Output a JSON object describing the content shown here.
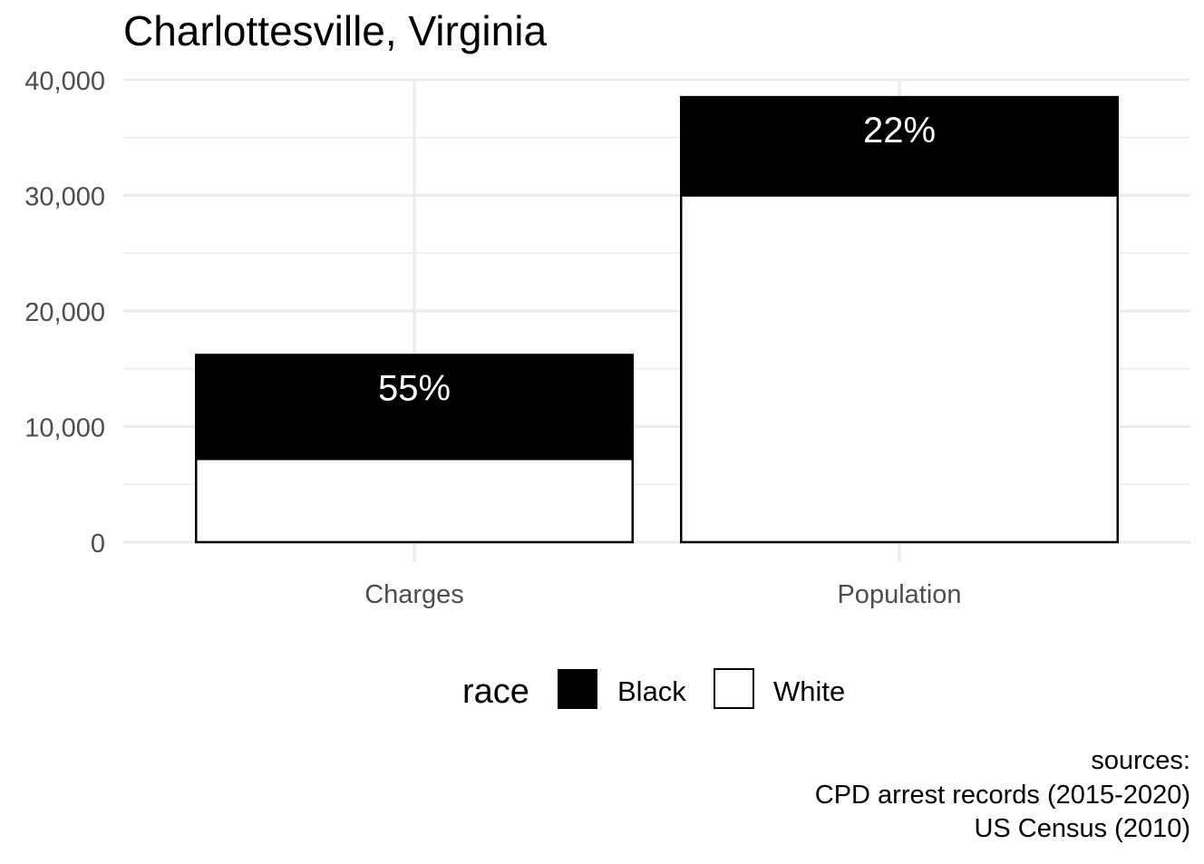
{
  "chart_data": {
    "type": "bar",
    "stacked": true,
    "title": "Charlottesville, Virginia",
    "xlabel": "",
    "ylabel": "",
    "categories": [
      "Charges",
      "Population"
    ],
    "series": [
      {
        "name": "White",
        "values": [
          7200,
          30000
        ],
        "fill": "#ffffff"
      },
      {
        "name": "Black",
        "values": [
          9000,
          8500
        ],
        "fill": "#000000"
      }
    ],
    "data_labels": [
      "55%",
      "22%"
    ],
    "ylim": [
      0,
      40000
    ],
    "yticks": [
      0,
      10000,
      20000,
      30000,
      40000
    ],
    "ytick_labels": [
      "0",
      "10,000",
      "20,000",
      "30,000",
      "40,000"
    ],
    "grid": true,
    "legend": {
      "title": "race",
      "position": "bottom",
      "entries": [
        {
          "label": "Black",
          "fill": "#000000"
        },
        {
          "label": "White",
          "fill": "#ffffff"
        }
      ]
    },
    "caption": [
      "sources:",
      "CPD arrest records (2015-2020)",
      "US Census (2010)"
    ]
  }
}
